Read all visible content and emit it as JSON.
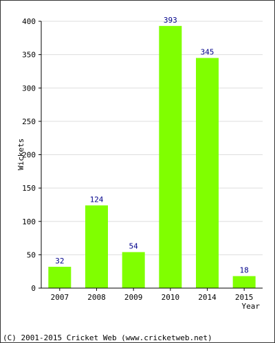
{
  "chart_data": {
    "type": "bar",
    "categories": [
      "2007",
      "2008",
      "2009",
      "2010",
      "2014",
      "2015"
    ],
    "values": [
      32,
      124,
      54,
      393,
      345,
      18
    ],
    "data_labels": [
      "32",
      "124",
      "54",
      "393",
      "345",
      "18"
    ],
    "xlabel": "Year",
    "ylabel": "Wickets",
    "ylim": [
      0,
      400
    ],
    "yticks": [
      0,
      50,
      100,
      150,
      200,
      250,
      300,
      350,
      400
    ],
    "grid": true,
    "legend": "none",
    "colors": {
      "bar": "#80ff00",
      "data_label": "#00008b",
      "grid": "#dddddd",
      "axis": "#000000",
      "background": "#ffffff"
    }
  },
  "footer": {
    "copyright": "(C) 2001-2015 Cricket Web (www.cricketweb.net)"
  }
}
